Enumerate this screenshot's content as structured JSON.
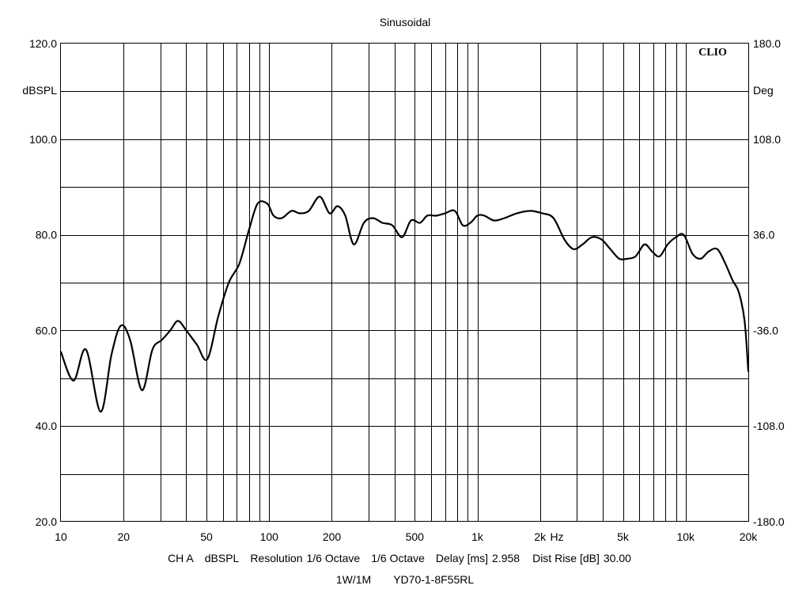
{
  "chart_data": {
    "type": "line",
    "title": "Sinusoidal",
    "brand_label": "CLIO",
    "x_scale": "log",
    "xlim": [
      10,
      20000
    ],
    "ylim_left": [
      20,
      120
    ],
    "ylim_right": [
      -180,
      180
    ],
    "ylabel_left": "dBSPL",
    "ylabel_right": "Deg",
    "x_unit_label": "Hz",
    "grid": true,
    "x_tick_labels": [
      {
        "value": 10,
        "label": "10"
      },
      {
        "value": 20,
        "label": "20"
      },
      {
        "value": 50,
        "label": "50"
      },
      {
        "value": 100,
        "label": "100"
      },
      {
        "value": 200,
        "label": "200"
      },
      {
        "value": 500,
        "label": "500"
      },
      {
        "value": 1000,
        "label": "1k"
      },
      {
        "value": 2000,
        "label": "2k"
      },
      {
        "value": 5000,
        "label": "5k"
      },
      {
        "value": 10000,
        "label": "10k"
      },
      {
        "value": 20000,
        "label": "20k"
      }
    ],
    "y_tick_labels_left": [
      {
        "value": 120,
        "label": "120.0"
      },
      {
        "value": 100,
        "label": "100.0"
      },
      {
        "value": 80,
        "label": "80.0"
      },
      {
        "value": 60,
        "label": "60.0"
      },
      {
        "value": 40,
        "label": "40.0"
      },
      {
        "value": 20,
        "label": "20.0"
      }
    ],
    "y_tick_labels_right": [
      {
        "value": 180,
        "label": "180.0"
      },
      {
        "value": 108,
        "label": "108.0"
      },
      {
        "value": 36,
        "label": "36.0"
      },
      {
        "value": -36,
        "label": "-36.0"
      },
      {
        "value": -108,
        "label": "-108.0"
      },
      {
        "value": -180,
        "label": "-180.0"
      }
    ],
    "series": [
      {
        "x": [
          10,
          11.5,
          13.2,
          15.5,
          17.5,
          19.4,
          21.5,
          24.5,
          27.5,
          30.5,
          33.5,
          36.5,
          40,
          45,
          50.5,
          57,
          64,
          72,
          80,
          88,
          98,
          105,
          115,
          128,
          140,
          155,
          175,
          195,
          213,
          232,
          255,
          285,
          315,
          350,
          390,
          435,
          480,
          530,
          575,
          635,
          700,
          780,
          850,
          925,
          1000,
          1080,
          1200,
          1350,
          1550,
          1800,
          2050,
          2320,
          2620,
          2900,
          3200,
          3550,
          3950,
          4350,
          4800,
          5250,
          5750,
          6350,
          6900,
          7500,
          8200,
          9000,
          9800,
          10800,
          11800,
          12900,
          14200,
          15500,
          16800,
          18000,
          19200,
          20000
        ],
        "y": [
          55.5,
          49.5,
          56,
          43,
          55,
          61,
          58,
          47.5,
          56,
          58,
          60,
          62,
          60,
          57,
          54,
          63,
          70,
          74,
          81,
          86.5,
          86.5,
          84,
          83.5,
          85,
          84.5,
          85,
          88,
          84.5,
          86,
          84,
          78,
          82.5,
          83.5,
          82.5,
          82,
          79.5,
          83,
          82.5,
          84,
          84,
          84.5,
          85,
          82,
          82.5,
          84,
          84,
          83,
          83.5,
          84.5,
          85,
          84.5,
          83.5,
          79,
          77,
          78,
          79.5,
          79,
          77,
          75,
          75,
          75.5,
          78,
          76.5,
          75.5,
          78,
          79.5,
          80,
          76,
          75,
          76.5,
          77,
          74,
          70.5,
          68,
          62,
          51.5
        ]
      }
    ],
    "footer_lines": [
      {
        "label": "CH A",
        "value": ""
      },
      {
        "label": "dBSPL",
        "value": ""
      },
      {
        "label": "Resolution",
        "value": "1/6 Octave"
      },
      {
        "label": "1/6 Octave",
        "value": ""
      },
      {
        "label": "Delay [ms]",
        "value": "2.958"
      },
      {
        "label": "Dist Rise [dB]",
        "value": "30.00"
      }
    ],
    "footer_line2": [
      "1W/1M",
      "YD70-1-8F55RL"
    ]
  }
}
